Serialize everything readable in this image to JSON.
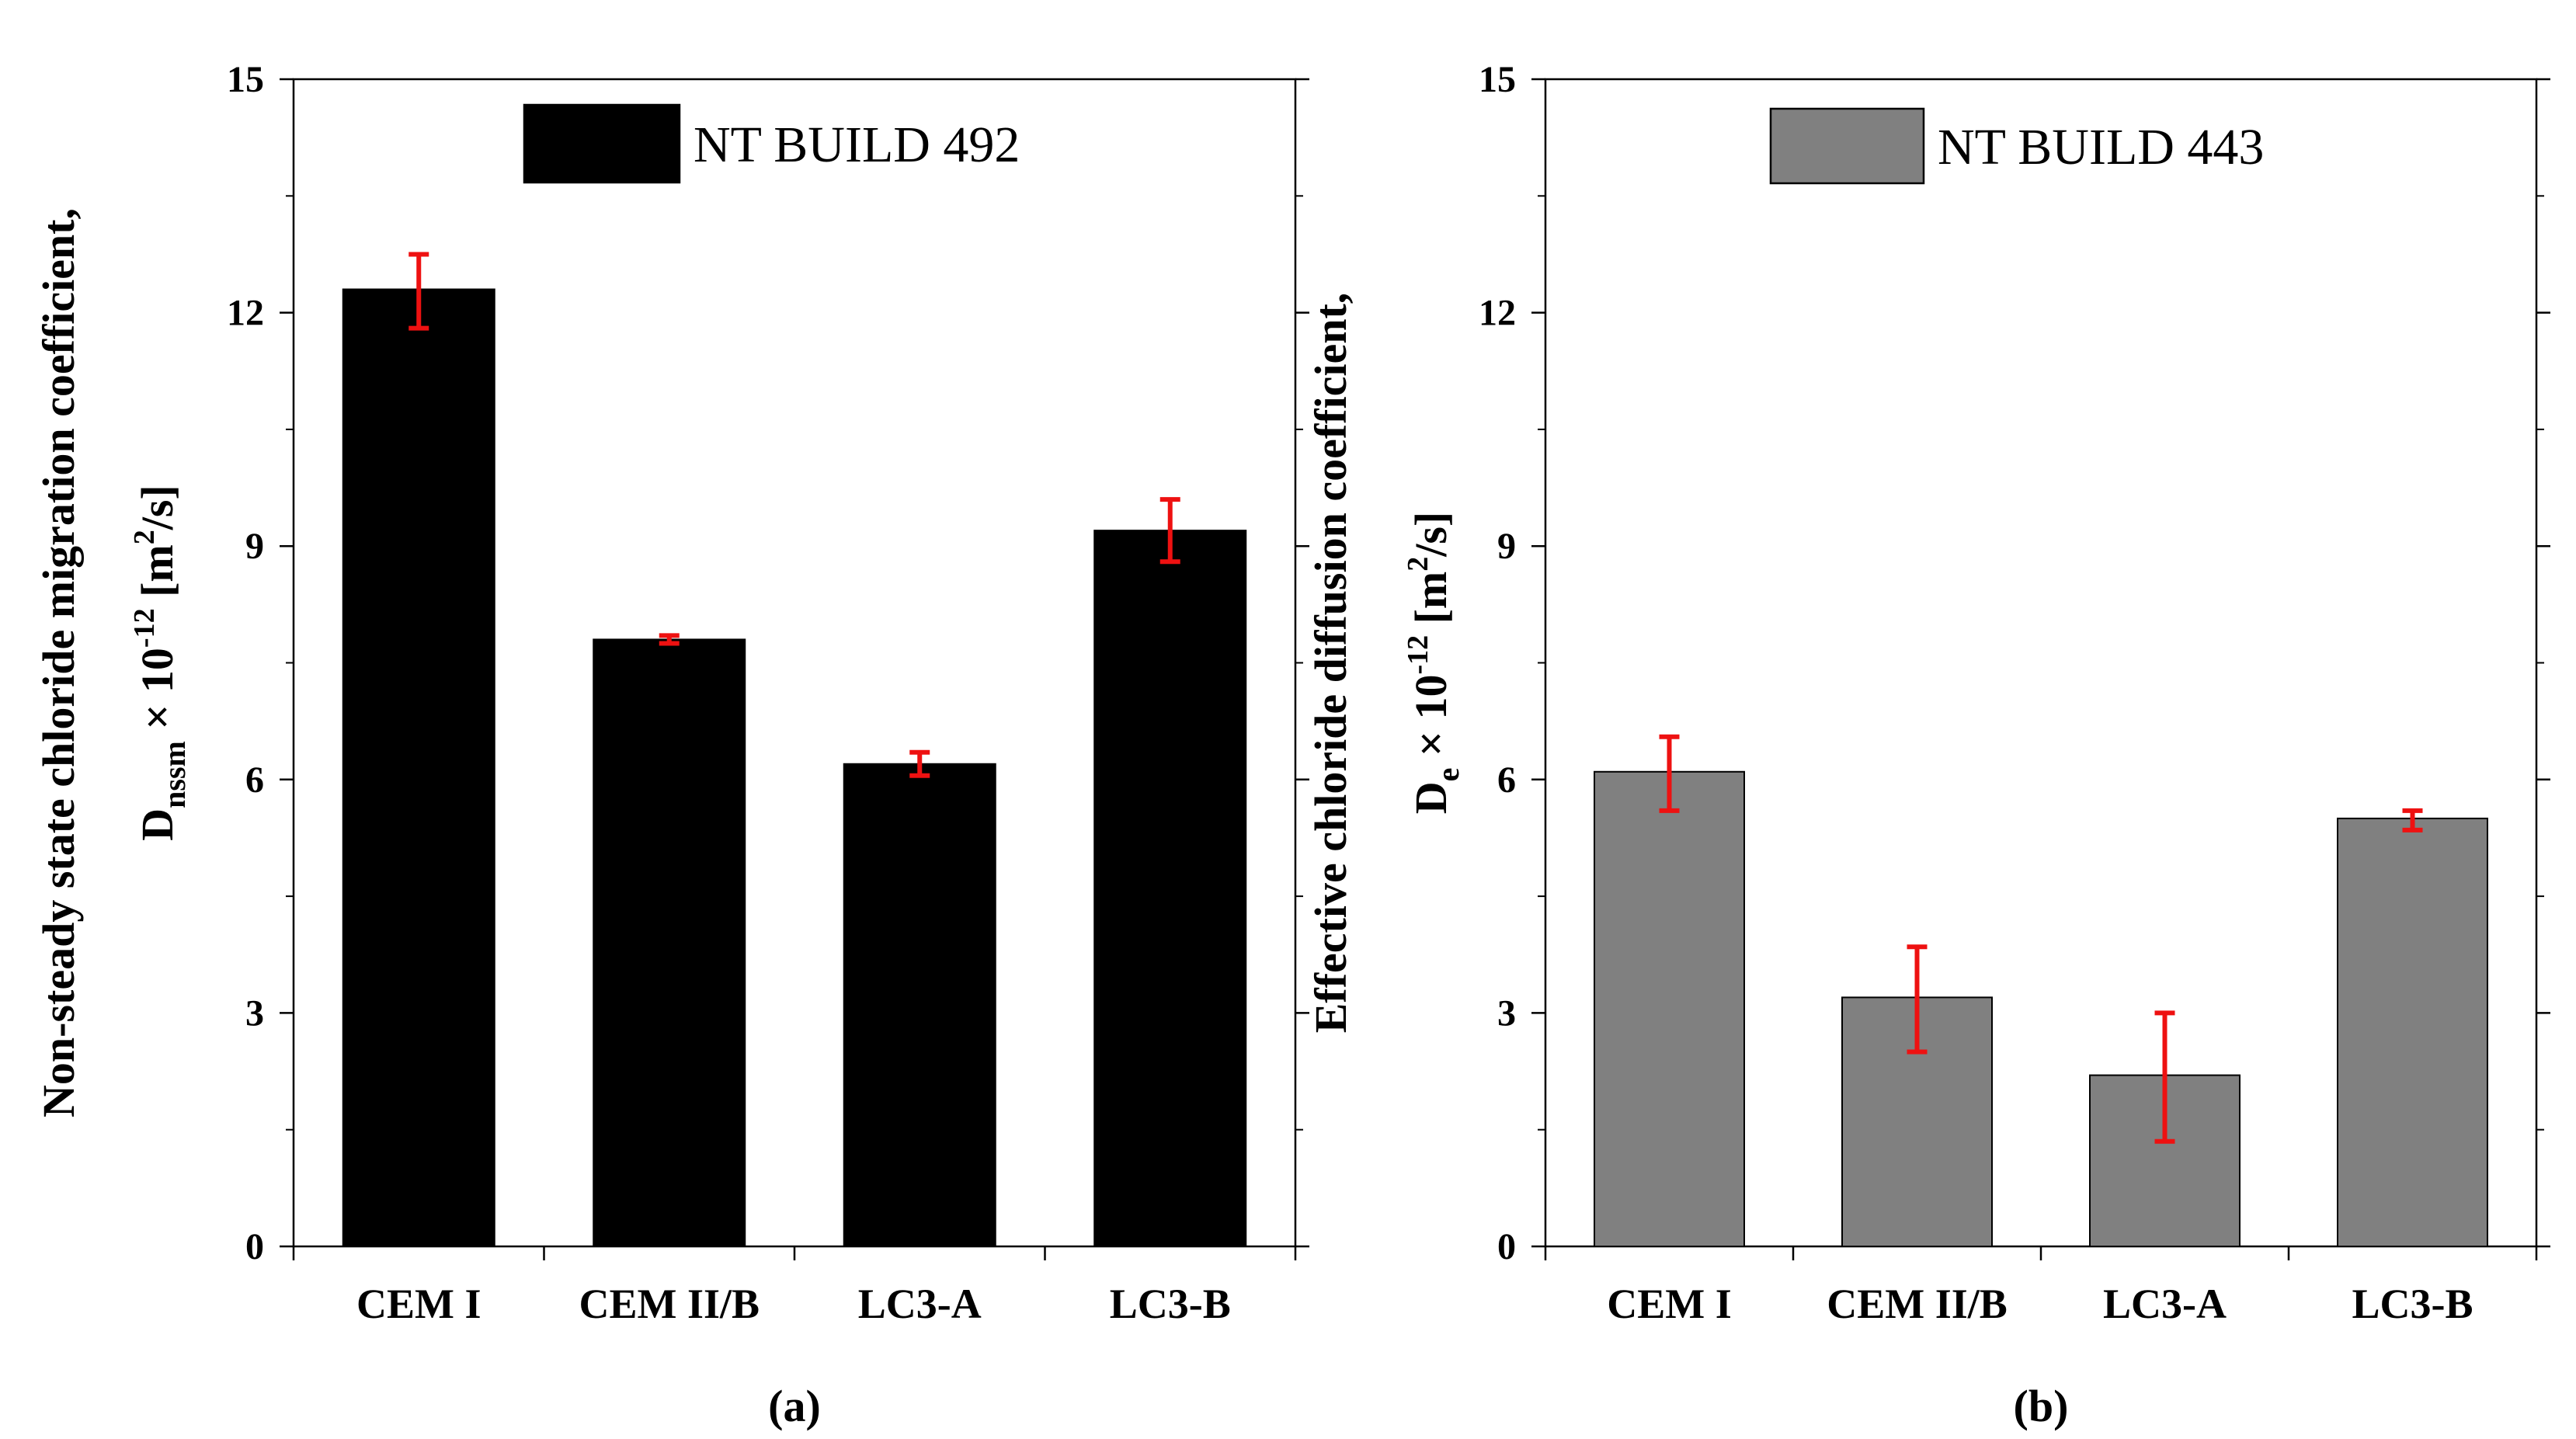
{
  "chart_data": [
    {
      "type": "bar",
      "panel_label": "(a)",
      "legend": [
        "NT BUILD 492"
      ],
      "legend_position": "top-center",
      "ylabel_line1": "Non-steady state chloride migration coefficient,",
      "ylabel_line2": {
        "base": "D",
        "sub": "nssm",
        "mid": " × 10",
        "sup": "-12",
        "unit_open": " [m",
        "unit_sup": "2",
        "unit_close": "/s]"
      },
      "categories": [
        "CEM I",
        "CEM II/B",
        "LC3-A",
        "LC3-B"
      ],
      "values": [
        12.3,
        7.8,
        6.2,
        9.2
      ],
      "error_low": [
        11.8,
        7.75,
        6.05,
        8.8
      ],
      "error_high": [
        12.75,
        7.85,
        6.35,
        9.6
      ],
      "bar_color": "#000000",
      "error_color": "#ee1111",
      "ylim": [
        0,
        15
      ],
      "yticks": [
        "0",
        "3",
        "6",
        "9",
        "12",
        "15"
      ],
      "ytick_values": [
        0,
        3,
        6,
        9,
        12,
        15
      ]
    },
    {
      "type": "bar",
      "panel_label": "(b)",
      "legend": [
        "NT BUILD 443"
      ],
      "legend_position": "top-center",
      "ylabel_line1": "Effective chloride diffusion coefficient,",
      "ylabel_line2": {
        "base": "D",
        "sub": "e",
        "mid": " × 10",
        "sup": "-12",
        "unit_open": " [m",
        "unit_sup": "2",
        "unit_close": "/s]"
      },
      "categories": [
        "CEM I",
        "CEM II/B",
        "LC3-A",
        "LC3-B"
      ],
      "values": [
        6.1,
        3.2,
        2.2,
        5.5
      ],
      "error_low": [
        5.6,
        2.5,
        1.35,
        5.35
      ],
      "error_high": [
        6.55,
        3.85,
        3.0,
        5.6
      ],
      "bar_color": "#808080",
      "error_color": "#ee1111",
      "ylim": [
        0,
        15
      ],
      "yticks": [
        "0",
        "3",
        "6",
        "9",
        "12",
        "15"
      ],
      "ytick_values": [
        0,
        3,
        6,
        9,
        12,
        15
      ]
    }
  ]
}
